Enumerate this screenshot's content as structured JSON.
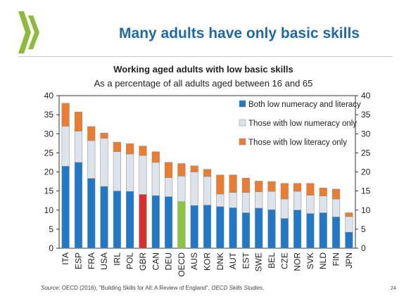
{
  "slide": {
    "title": "Many adults have only basic skills",
    "source_label": "Source",
    "source_text": ": OECD (2016), \"Building Skills for All: A Review of England\", ",
    "source_italic": "OECD Skills Studies",
    "source_end": ".",
    "page_number": "24"
  },
  "chart_data": {
    "type": "bar",
    "stacked": true,
    "title": "Working aged adults with low basic skills",
    "subtitle": "As a percentage of all adults aged between 16 and 65",
    "categories": [
      "ITA",
      "ESP",
      "FRA",
      "USA",
      "IRL",
      "POL",
      "GBR",
      "CAN",
      "DEU",
      "OECD",
      "AUS",
      "KOR",
      "DNK",
      "AUT",
      "EST",
      "SWE",
      "BEL",
      "CZE",
      "NOR",
      "SVK",
      "NLD",
      "FIN",
      "JPN"
    ],
    "series": [
      {
        "name": "Both low numeracy and literacy",
        "color": "#1f78c8",
        "values": [
          21.5,
          22.5,
          18.3,
          16.2,
          15.0,
          14.9,
          14.1,
          13.8,
          13.5,
          12.2,
          11.2,
          11.3,
          10.9,
          10.6,
          9.3,
          10.5,
          10.1,
          7.8,
          10.0,
          9.1,
          9.3,
          8.2,
          4.2
        ]
      },
      {
        "name": "Those with low numeracy only",
        "color": "#dde3ea",
        "values": [
          10.5,
          8.2,
          9.9,
          12.6,
          10.3,
          9.8,
          10.2,
          8.7,
          5.0,
          6.7,
          8.8,
          7.5,
          3.3,
          4.0,
          5.3,
          4.3,
          4.8,
          5.1,
          4.9,
          4.8,
          4.4,
          4.7,
          4.1
        ]
      },
      {
        "name": "Those with low literacy only",
        "color": "#ec7c30",
        "values": [
          6.0,
          5.0,
          3.7,
          1.4,
          2.5,
          2.7,
          2.5,
          2.8,
          4.0,
          3.3,
          1.6,
          1.9,
          5.0,
          4.6,
          3.8,
          2.8,
          2.6,
          4.1,
          2.1,
          3.1,
          2.1,
          2.6,
          1.0
        ]
      }
    ],
    "highlight": {
      "GBR": "#dc2d2d",
      "OECD": "#8cc63f"
    },
    "ylim": [
      0,
      40
    ],
    "yticks": [
      0,
      5,
      10,
      15,
      20,
      25,
      30,
      35,
      40
    ],
    "legend_position": "top-right",
    "grid": false
  }
}
